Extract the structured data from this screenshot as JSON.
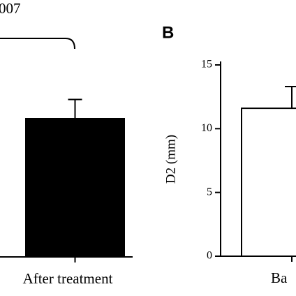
{
  "chart_data": [
    {
      "type": "bar",
      "annotation": "007",
      "categories": [
        "After treatment"
      ],
      "values": [
        10.8
      ],
      "errors": [
        1.5
      ],
      "color": "#000000",
      "ylim": [
        0,
        15
      ]
    },
    {
      "type": "bar",
      "panel_label": "B",
      "y_label": "D2 (mm)",
      "categories": [
        "Ba"
      ],
      "values": [
        11.6
      ],
      "errors": [
        1.7
      ],
      "color": "#ffffff",
      "edge_color": "#000000",
      "ylim": [
        0,
        15
      ],
      "yticks": [
        0,
        5,
        10,
        15
      ]
    }
  ]
}
